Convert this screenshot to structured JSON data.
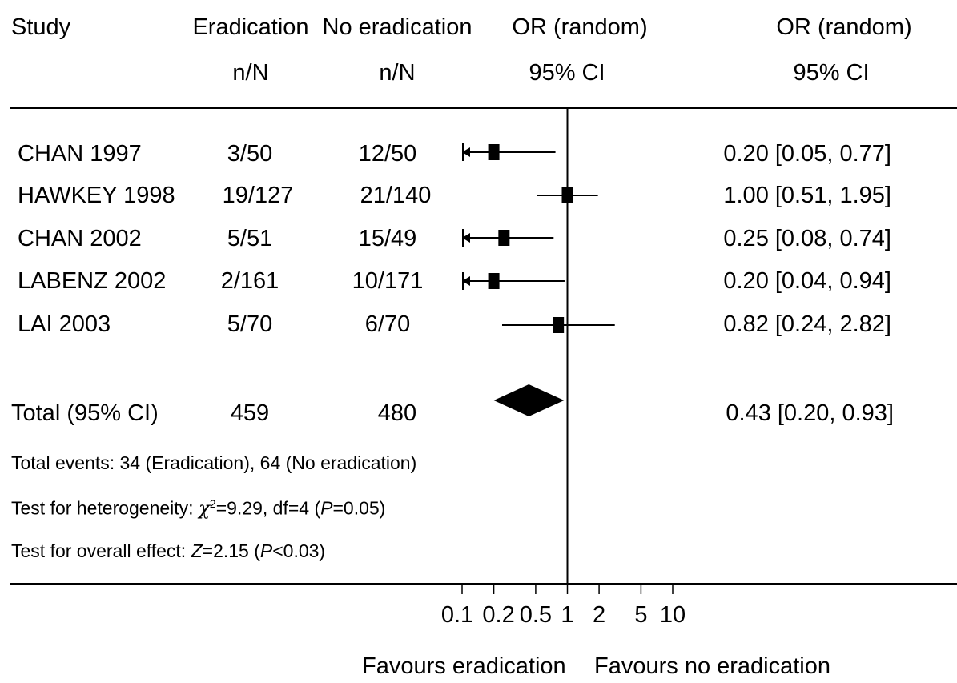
{
  "header": {
    "study": "Study",
    "eradication": "Eradication",
    "no_eradication": "No eradication",
    "n_over_n": "n/N",
    "or_random": "OR (random)",
    "ci_95": "95% CI"
  },
  "chart_data": {
    "type": "forest",
    "x_scale": "log",
    "xlim": [
      0.1,
      10
    ],
    "x_ticks": [
      0.1,
      0.2,
      0.5,
      1,
      2,
      5,
      10
    ],
    "x_tick_labels": [
      "0.1",
      "0.2",
      "0.5",
      "1",
      "2",
      "5",
      "10"
    ],
    "reference_line": 1,
    "left_label": "Favours eradication",
    "right_label": "Favours no eradication",
    "studies": [
      {
        "name": "CHAN 1997",
        "eradication": "3/50",
        "no_eradication": "12/50",
        "or": 0.2,
        "lo": 0.05,
        "hi": 0.77,
        "ci_text": "0.20 [0.05, 0.77]"
      },
      {
        "name": "HAWKEY 1998",
        "eradication": "19/127",
        "no_eradication": "21/140",
        "or": 1.0,
        "lo": 0.51,
        "hi": 1.95,
        "ci_text": "1.00 [0.51, 1.95]"
      },
      {
        "name": "CHAN 2002",
        "eradication": "5/51",
        "no_eradication": "15/49",
        "or": 0.25,
        "lo": 0.08,
        "hi": 0.74,
        "ci_text": "0.25 [0.08, 0.74]"
      },
      {
        "name": "LABENZ 2002",
        "eradication": "2/161",
        "no_eradication": "10/171",
        "or": 0.2,
        "lo": 0.04,
        "hi": 0.94,
        "ci_text": "0.20 [0.04, 0.94]"
      },
      {
        "name": "LAI 2003",
        "eradication": "5/70",
        "no_eradication": "6/70",
        "or": 0.82,
        "lo": 0.24,
        "hi": 2.82,
        "ci_text": "0.82 [0.24, 2.82]"
      }
    ],
    "total": {
      "name": "Total (95% CI)",
      "eradication": "459",
      "no_eradication": "480",
      "or": 0.43,
      "lo": 0.2,
      "hi": 0.93,
      "ci_text": "0.43 [0.20, 0.93]"
    }
  },
  "footnotes": {
    "total_events": "Total events: 34 (Eradication), 64 (No eradication)",
    "heterogeneity_prefix": "Test for heterogeneity: ",
    "chi": "χ",
    "chi_sup": "2",
    "heterogeneity_stat": "=9.29,  df=4 (",
    "p_symbol": "P",
    "heterogeneity_p": "=0.05)",
    "overall_prefix": "Test for overall effect: ",
    "z_symbol": "Z",
    "overall_stat": "=2.15 (",
    "overall_p": "<0.03)"
  }
}
